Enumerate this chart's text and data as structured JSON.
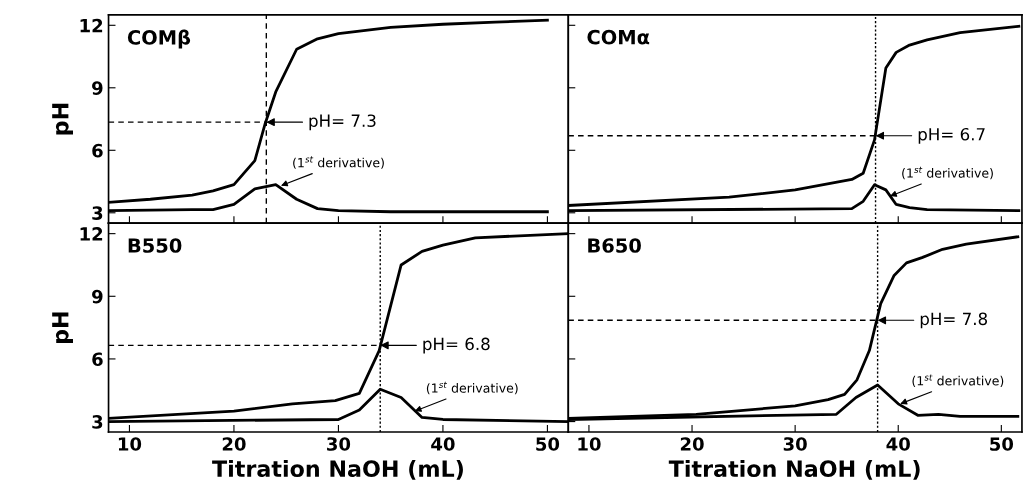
{
  "chart_data": [
    {
      "type": "line",
      "title": "COMβ",
      "ylabel": "pH",
      "xlim": [
        8,
        52
      ],
      "ylim": [
        2.5,
        12.5
      ],
      "xticks": [
        10,
        20,
        30,
        40,
        50
      ],
      "yticks": [
        3,
        6,
        9,
        12
      ],
      "tick_labels": "y",
      "grid": false,
      "line_style": "solid",
      "marker": "none",
      "series": [
        {
          "color": "#000000",
          "x": [
            8,
            12,
            16,
            18,
            20,
            22,
            23,
            24,
            26,
            28,
            30,
            35,
            40,
            45,
            50
          ],
          "values": [
            3.5,
            3.65,
            3.85,
            4.05,
            4.35,
            5.5,
            7.3,
            8.8,
            10.85,
            11.35,
            11.6,
            11.9,
            12.05,
            12.15,
            12.25
          ]
        },
        {
          "color": "#000000",
          "x": [
            8,
            16,
            18,
            20,
            22,
            24,
            26,
            28,
            30,
            35,
            50
          ],
          "values": [
            3.1,
            3.15,
            3.15,
            3.4,
            4.15,
            4.35,
            3.65,
            3.2,
            3.1,
            3.05,
            3.05
          ]
        }
      ],
      "ref_lines": [
        {
          "axis": "x",
          "value": 23.1,
          "line_style": "dashed",
          "color": "#000000"
        },
        {
          "axis": "y",
          "value": 7.35,
          "line_style": "dashed",
          "color": "#000000"
        }
      ],
      "annotations": [
        {
          "text": "pH= 7.3",
          "x": 23.1,
          "y": 7.35
        },
        {
          "text": "(1$^{st}$ derivative)",
          "x": 24.5,
          "y": 4.3
        }
      ]
    },
    {
      "type": "line",
      "title": "COMα",
      "xlim": [
        8,
        52
      ],
      "ylim": [
        2.5,
        12.5
      ],
      "xticks": [
        10,
        20,
        30,
        40,
        50
      ],
      "yticks": [
        3,
        6,
        9,
        12
      ],
      "tick_labels": false,
      "grid": false,
      "line_style": "solid",
      "marker": "none",
      "series": [
        {
          "color": "#000000",
          "x": [
            8,
            23.6,
            30,
            35.5,
            36.6,
            37.7,
            38.8,
            39.8,
            41.1,
            42.8,
            46,
            51.7
          ],
          "values": [
            3.35,
            3.75,
            4.1,
            4.6,
            4.9,
            6.5,
            9.95,
            10.7,
            11.05,
            11.3,
            11.65,
            11.95
          ]
        },
        {
          "color": "#000000",
          "x": [
            8,
            35.5,
            36.6,
            37.7,
            38.8,
            39.8,
            41.1,
            42.8,
            51.7
          ],
          "values": [
            3.1,
            3.2,
            3.55,
            4.35,
            4.1,
            3.4,
            3.25,
            3.15,
            3.1
          ]
        }
      ],
      "ref_lines": [
        {
          "axis": "x",
          "value": 37.8,
          "line_style": "dotted",
          "color": "#000000"
        },
        {
          "axis": "y",
          "value": 6.7,
          "line_style": "dashed",
          "color": "#000000"
        }
      ],
      "annotations": [
        {
          "text": "pH= 6.7",
          "x": 37.8,
          "y": 6.7
        },
        {
          "text": "(1$^{st}$ derivative)",
          "x": 39.2,
          "y": 3.8
        }
      ]
    },
    {
      "type": "line",
      "title": "B550",
      "xlabel": "Titration NaOH (mL)",
      "ylabel": "pH",
      "xlim": [
        8,
        52
      ],
      "ylim": [
        2.5,
        12.5
      ],
      "xticks": [
        10,
        20,
        30,
        40,
        50
      ],
      "yticks": [
        3,
        6,
        9,
        12
      ],
      "grid": false,
      "line_style": "solid",
      "marker": "none",
      "series": [
        {
          "color": "#000000",
          "x": [
            8,
            20,
            25.6,
            29.7,
            32,
            33.9,
            36,
            38,
            40,
            43.1,
            51.9
          ],
          "values": [
            3.15,
            3.5,
            3.85,
            4.0,
            4.35,
            6.4,
            10.5,
            11.15,
            11.45,
            11.8,
            12.0
          ]
        },
        {
          "color": "#000000",
          "x": [
            8,
            30,
            32,
            34,
            36,
            38,
            40,
            51.9
          ],
          "values": [
            3.0,
            3.1,
            3.55,
            4.55,
            4.15,
            3.2,
            3.1,
            3.0
          ]
        }
      ],
      "ref_lines": [
        {
          "axis": "x",
          "value": 34.0,
          "line_style": "dotted",
          "color": "#000000"
        },
        {
          "axis": "y",
          "value": 6.65,
          "line_style": "dashed",
          "color": "#000000"
        }
      ],
      "annotations": [
        {
          "text": "pH= 6.8",
          "x": 34.0,
          "y": 6.65
        },
        {
          "text": "(1$^{st}$ derivative)",
          "x": 37.3,
          "y": 3.5
        }
      ]
    },
    {
      "type": "line",
      "title": "B650",
      "xlabel": "Titration NaOH (mL)",
      "xlim": [
        8,
        52
      ],
      "ylim": [
        2.5,
        12.5
      ],
      "xticks": [
        10,
        20,
        30,
        40,
        50
      ],
      "yticks": [
        3,
        6,
        9,
        12
      ],
      "tick_labels": "x",
      "grid": false,
      "line_style": "solid",
      "marker": "none",
      "series": [
        {
          "color": "#000000",
          "x": [
            8,
            20.4,
            30,
            33.2,
            34.8,
            36,
            37.2,
            38.3,
            39.6,
            40.8,
            42.3,
            44.3,
            46.6,
            51.6
          ],
          "values": [
            3.15,
            3.35,
            3.75,
            4.05,
            4.3,
            5.0,
            6.4,
            8.65,
            10.0,
            10.6,
            10.85,
            11.25,
            11.5,
            11.85
          ]
        },
        {
          "color": "#000000",
          "x": [
            8,
            34,
            35.9,
            38,
            40,
            41.9,
            43.9,
            46,
            51.6
          ],
          "values": [
            3.1,
            3.35,
            4.15,
            4.75,
            3.85,
            3.3,
            3.35,
            3.25,
            3.25
          ]
        }
      ],
      "ref_lines": [
        {
          "axis": "x",
          "value": 38.0,
          "line_style": "dotted",
          "color": "#000000"
        },
        {
          "axis": "y",
          "value": 7.85,
          "line_style": "dashed",
          "color": "#000000"
        }
      ],
      "annotations": [
        {
          "text": "pH= 7.8",
          "x": 38.0,
          "y": 7.85
        },
        {
          "text": "(1$^{st}$ derivative)",
          "x": 40.2,
          "y": 3.85
        }
      ]
    }
  ]
}
